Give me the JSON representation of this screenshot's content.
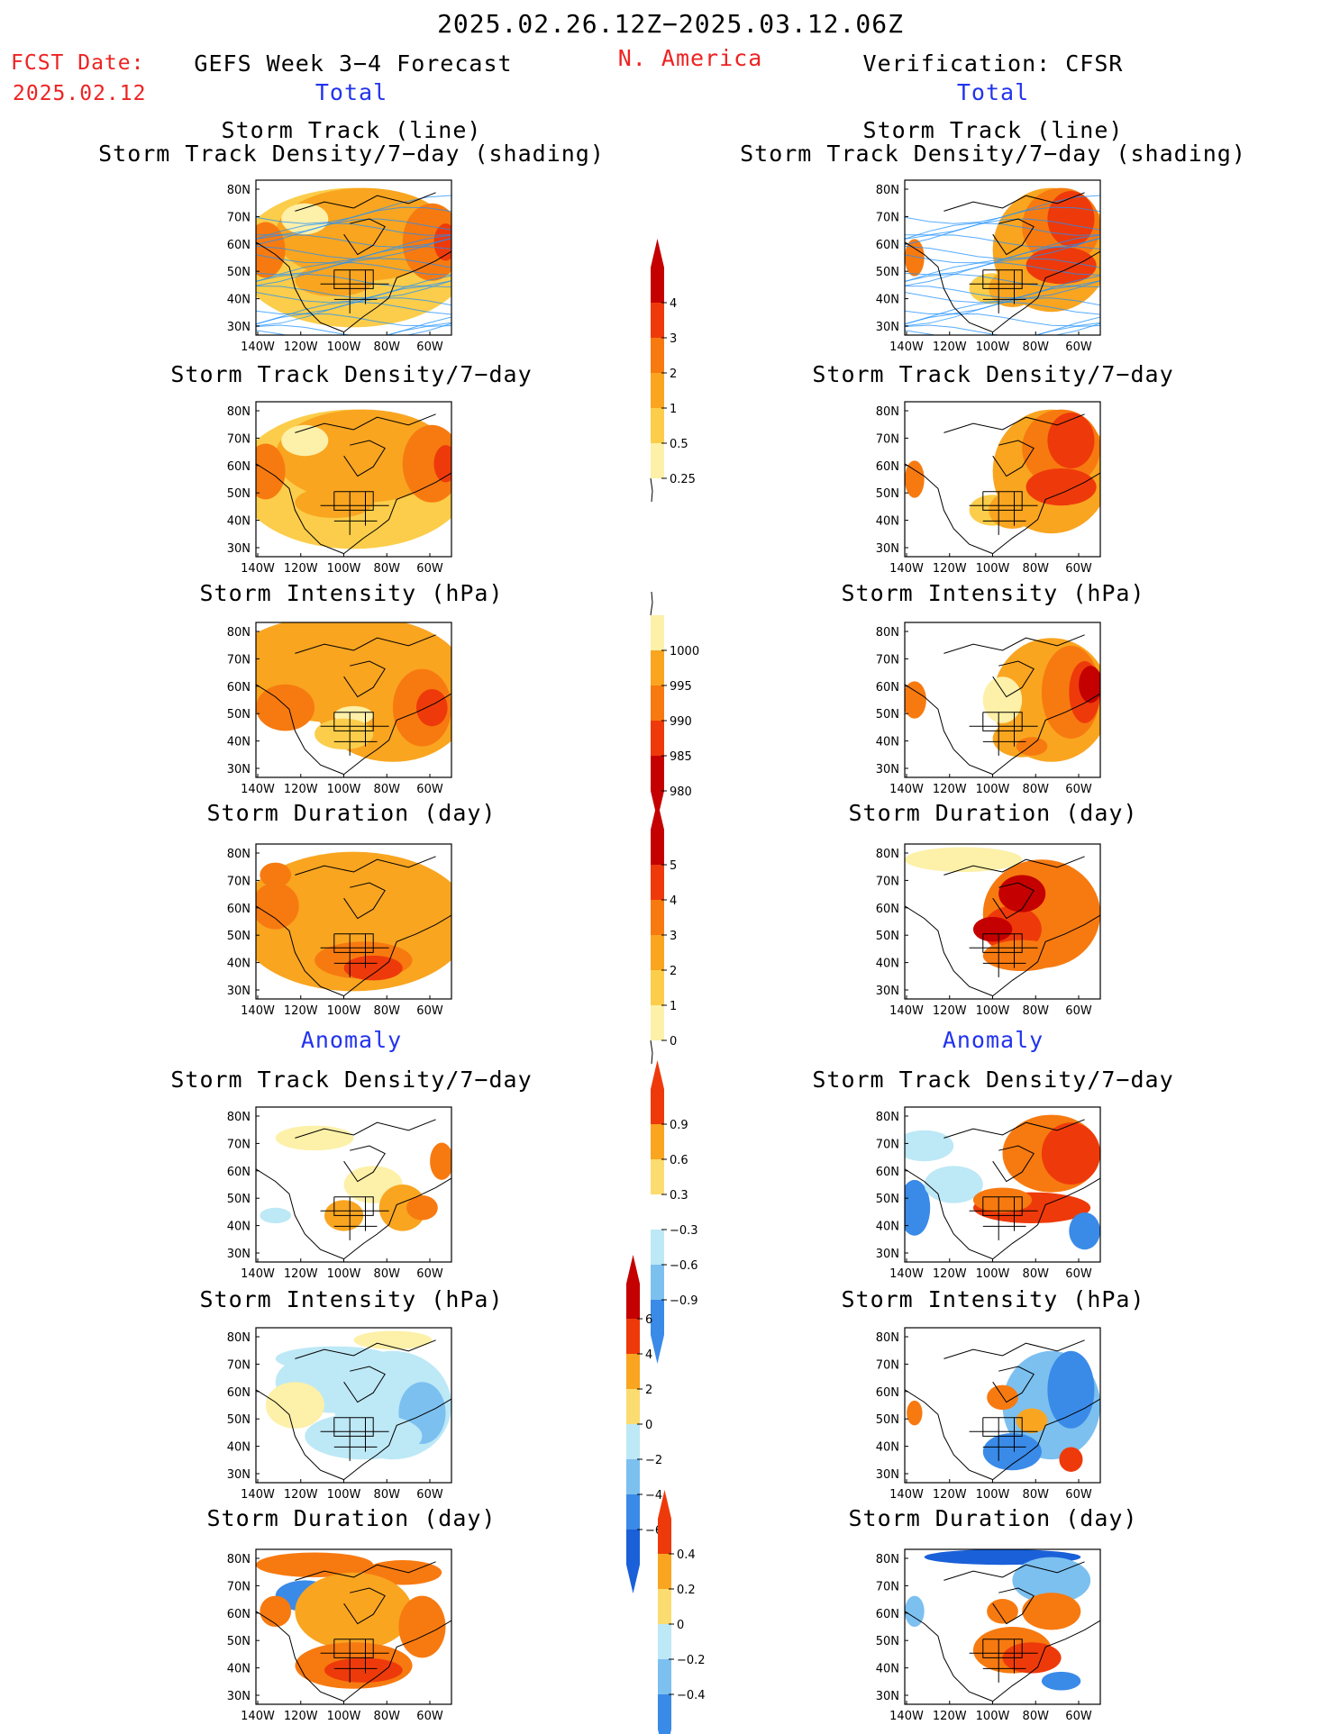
{
  "header": {
    "date_range": "2025.02.26.12Z−2025.03.12.06Z",
    "fcst_label": "FCST Date:",
    "fcst_date": "2025.02.12",
    "forecast_title": "GEFS Week 3−4 Forecast",
    "region": "N. America",
    "verification": "Verification: CFSR"
  },
  "sections": {
    "total_left": "Total",
    "total_right": "Total",
    "anomaly_left": "Anomaly",
    "anomaly_right": "Anomaly"
  },
  "panel_titles": {
    "storm_track_line": "Storm Track (line)",
    "storm_track_shading": "Storm Track Density/7−day (shading)",
    "density": "Storm Track Density/7−day",
    "intensity": "Storm Intensity (hPa)",
    "duration": "Storm Duration (day)"
  },
  "axes": {
    "lat_labels": [
      "80N",
      "70N",
      "60N",
      "50N",
      "40N",
      "30N"
    ],
    "lon_labels": [
      "140W",
      "120W",
      "100W",
      "80W",
      "60W"
    ]
  },
  "colorbars": {
    "density_total": {
      "labels": [
        "4",
        "3",
        "2",
        "1",
        "0.5",
        "0.25"
      ],
      "colors": [
        "#c40000",
        "#ee3a0a",
        "#f77a10",
        "#f9a520",
        "#fbcd4a",
        "#fdf0a8"
      ]
    },
    "intensity_total": {
      "labels": [
        "1000",
        "995",
        "990",
        "985",
        "980"
      ],
      "colors": [
        "#fdf0a8",
        "#f9a520",
        "#f77a10",
        "#ee3a0a",
        "#c40000"
      ]
    },
    "duration_total": {
      "labels": [
        "5",
        "4",
        "3",
        "2",
        "1",
        "0"
      ],
      "colors": [
        "#c40000",
        "#ee3a0a",
        "#f77a10",
        "#f9a520",
        "#fbcd4a",
        "#fdf0a8"
      ]
    },
    "density_anom": {
      "labels": [
        "0.9",
        "0.6",
        "0.3",
        "−0.3",
        "−0.6",
        "−0.9"
      ],
      "colors": [
        "#ee3a0a",
        "#f9a520",
        "#fbdc70",
        "#ffffff",
        "#bde8f6",
        "#7cc0f0",
        "#3a8ae8"
      ]
    },
    "intensity_anom": {
      "labels": [
        "6",
        "4",
        "2",
        "0",
        "−2",
        "−4",
        "−6"
      ],
      "colors": [
        "#c40000",
        "#ee3a0a",
        "#f9a520",
        "#fbdc70",
        "#bde8f6",
        "#7cc0f0",
        "#3a8ae8",
        "#1a60d8"
      ]
    },
    "duration_anom": {
      "labels": [
        "0.4",
        "0.2",
        "0",
        "−0.2",
        "−0.4"
      ],
      "colors": [
        "#ee3a0a",
        "#f9a520",
        "#fbdc70",
        "#bde8f6",
        "#7cc0f0",
        "#3a8ae8"
      ]
    }
  },
  "colors": {
    "title_red": "#ee2222",
    "section_blue": "#2233ee",
    "track_line_blue": "#1e90ff"
  }
}
